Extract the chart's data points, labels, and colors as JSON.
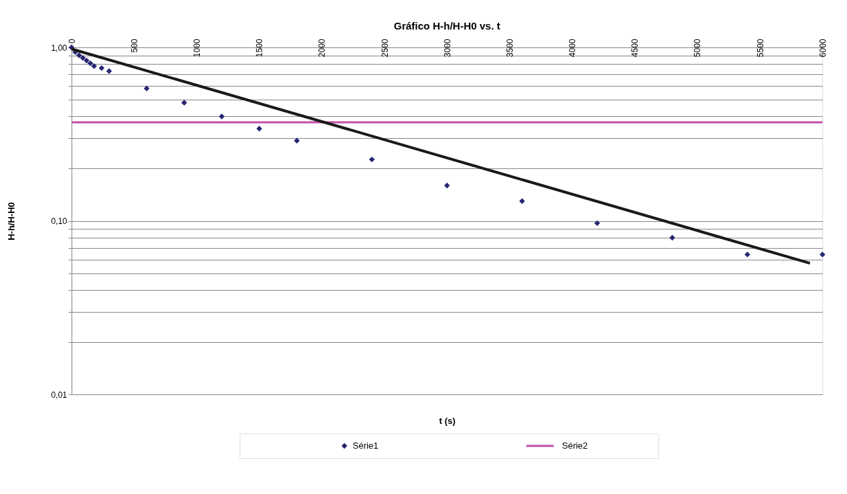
{
  "chart_data": {
    "type": "scatter",
    "title": "Gráfico H-h/H-H0 vs. t",
    "xlabel": "t (s)",
    "ylabel": "H-h/H-H0",
    "log": "y",
    "grid": "y",
    "legend": "bottom",
    "xlim": [
      0,
      6000
    ],
    "xticks": [
      0,
      500,
      1000,
      1500,
      2000,
      2500,
      3000,
      3500,
      4000,
      4500,
      5000,
      5500,
      6000
    ],
    "ylim": [
      0.01,
      1
    ],
    "yticks": [
      {
        "value": 0.01,
        "label": "0,01"
      },
      {
        "value": 0.02,
        "label": null
      },
      {
        "value": 0.03,
        "label": null
      },
      {
        "value": 0.04,
        "label": null
      },
      {
        "value": 0.05,
        "label": null
      },
      {
        "value": 0.06,
        "label": null
      },
      {
        "value": 0.07,
        "label": null
      },
      {
        "value": 0.08,
        "label": null
      },
      {
        "value": 0.09,
        "label": null
      },
      {
        "value": 0.1,
        "label": "0,10"
      },
      {
        "value": 0.2,
        "label": null
      },
      {
        "value": 0.3,
        "label": null
      },
      {
        "value": 0.4,
        "label": null
      },
      {
        "value": 0.5,
        "label": null
      },
      {
        "value": 0.6,
        "label": null
      },
      {
        "value": 0.7,
        "label": null
      },
      {
        "value": 0.8,
        "label": null
      },
      {
        "value": 0.9,
        "label": null
      },
      {
        "value": 1,
        "label": "1,00"
      }
    ],
    "series": [
      {
        "name": "Série1",
        "marker": "diamond",
        "color": "#262673",
        "x": [
          0,
          30,
          60,
          90,
          120,
          150,
          180,
          240,
          300,
          600,
          900,
          1200,
          1500,
          1800,
          2400,
          3000,
          3600,
          4200,
          4800,
          5400,
          6000
        ],
        "values": [
          1.0,
          0.94,
          0.9,
          0.87,
          0.84,
          0.81,
          0.78,
          0.76,
          0.73,
          0.58,
          0.48,
          0.4,
          0.34,
          0.29,
          0.226,
          0.16,
          0.13,
          0.097,
          0.08,
          0.064,
          0.064
        ]
      },
      {
        "name": "Série2",
        "type": "line",
        "color": "#c050a8",
        "x": [
          0,
          6000
        ],
        "values": [
          0.37,
          0.37
        ]
      },
      {
        "type": "line",
        "color": "#1a1a1a",
        "x": [
          0,
          5900
        ],
        "values": [
          0.98,
          0.057
        ]
      }
    ]
  }
}
